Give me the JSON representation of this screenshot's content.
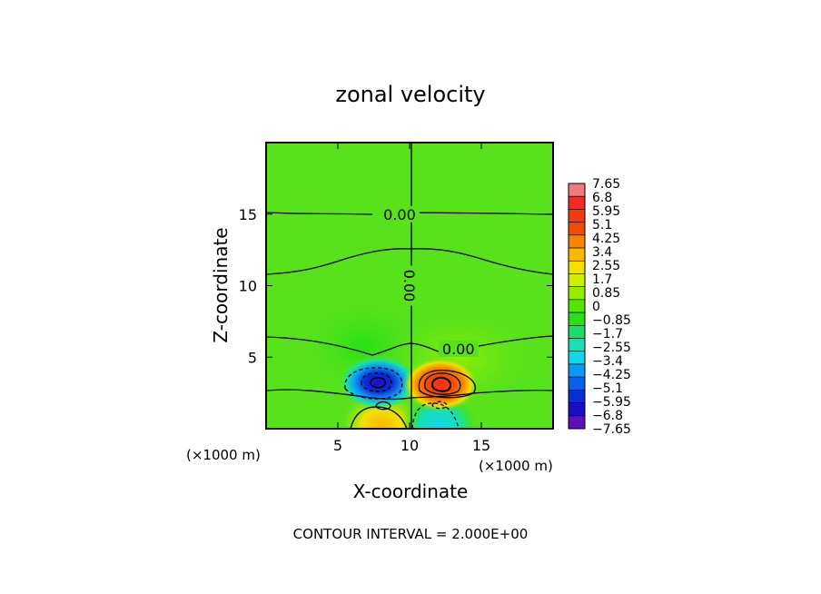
{
  "chart_data": {
    "type": "contour",
    "title": "zonal velocity",
    "xlabel": "X-coordinate",
    "ylabel": "Z-coordinate",
    "x_unit_label": "(×1000 m)",
    "z_unit_label": "(×1000 m)",
    "x_ticks": [
      5,
      10,
      15
    ],
    "z_ticks": [
      5,
      10,
      15
    ],
    "xlim": [
      0,
      20
    ],
    "zlim": [
      0,
      20
    ],
    "contour_interval_text": "CONTOUR INTERVAL = 2.000E+00",
    "contour_labels": [
      {
        "text": "0.00",
        "x": 9.3,
        "z": 15.0,
        "rotate": 0
      },
      {
        "text": "0.00",
        "x": 10.0,
        "z": 10.0,
        "rotate": 90
      },
      {
        "text": "0.00",
        "x": 13.4,
        "z": 5.6,
        "rotate": 0
      }
    ],
    "colorbar_levels": [
      "7.65",
      "6.8",
      "5.95",
      "5.1",
      "4.25",
      "3.4",
      "2.55",
      "1.7",
      "0.85",
      "0",
      "−0.85",
      "−1.7",
      "−2.55",
      "−3.4",
      "−4.25",
      "−5.1",
      "−5.95",
      "−6.8",
      "−7.65"
    ],
    "colorbar_colors": [
      "#f07a80",
      "#f52b22",
      "#f53a10",
      "#f34c00",
      "#f78500",
      "#fbb800",
      "#f2e000",
      "#cbf000",
      "#95ee00",
      "#55e600",
      "#27e016",
      "#19dc6a",
      "#16e0b4",
      "#12d7ea",
      "#0d98f5",
      "#0b60eb",
      "#0b2cd4",
      "#1a0ec4",
      "#5b10b8"
    ],
    "features": {
      "background": "#58e21c",
      "negative_core": {
        "x": 7.9,
        "z": 3.2,
        "value": -7.0,
        "color": "#0b2cd4"
      },
      "positive_core": {
        "x": 12.0,
        "z": 3.0,
        "value": 6.0,
        "color": "#f34c00"
      },
      "lower_positive": {
        "x": 8.6,
        "z": 0.8,
        "value": 3.0,
        "color": "#f2e000"
      },
      "lower_negative": {
        "x": 12.0,
        "z": 0.8,
        "value": -2.5,
        "color": "#16e0b4"
      }
    }
  }
}
